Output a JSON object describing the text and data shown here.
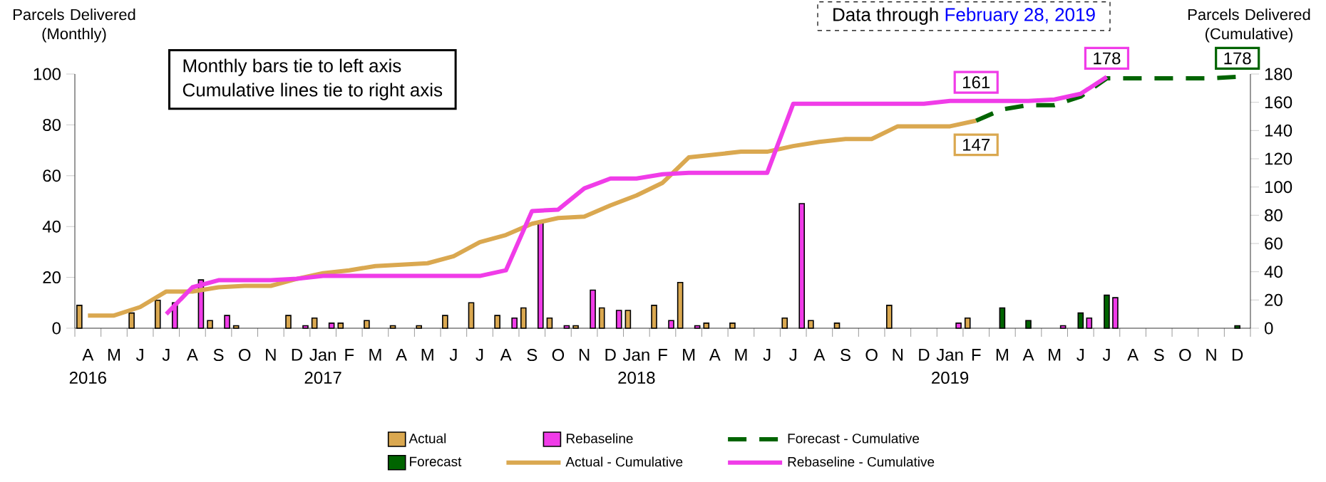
{
  "chart_data": {
    "type": "bar",
    "ylabel": "Parcels Delivered (Monthly)",
    "y2label": "Parcels Delivered (Cumulative)",
    "categories": [
      "A",
      "M",
      "J",
      "J",
      "A",
      "S",
      "O",
      "N",
      "D",
      "Jan",
      "F",
      "M",
      "A",
      "M",
      "J",
      "J",
      "A",
      "S",
      "O",
      "N",
      "D",
      "Jan",
      "F",
      "M",
      "A",
      "M",
      "J",
      "J",
      "A",
      "S",
      "O",
      "N",
      "D",
      "Jan",
      "F",
      "M",
      "A",
      "M",
      "J",
      "J",
      "A",
      "S",
      "O",
      "N",
      "D"
    ],
    "ylim": [
      0,
      100
    ],
    "yticks": [
      0,
      20,
      40,
      60,
      80,
      100
    ],
    "y2lim": [
      0,
      180
    ],
    "y2ticks": [
      0,
      20,
      40,
      60,
      80,
      100,
      120,
      140,
      160,
      180
    ],
    "legend": "bottom",
    "annotations": [
      "Monthly bars tie to left axis",
      "Cumulative lines tie to right axis",
      "Data through",
      "February 28, 2019",
      "2016",
      "2017",
      "2018",
      "2019"
    ],
    "series": [
      {
        "name": "Actual",
        "type": "bar",
        "color": "#daa850",
        "values": [
          9,
          null,
          6,
          11,
          null,
          3,
          1,
          null,
          5,
          4,
          2,
          3,
          1,
          1,
          5,
          10,
          5,
          8,
          4,
          1,
          8,
          7,
          9,
          18,
          2,
          2,
          null,
          4,
          3,
          2,
          null,
          9,
          null,
          null,
          4,
          null,
          null,
          null,
          null,
          null,
          null,
          null,
          null,
          null,
          null
        ]
      },
      {
        "name": "Forecast",
        "type": "bar",
        "color": "#006400",
        "values": [
          null,
          null,
          null,
          null,
          null,
          null,
          null,
          null,
          null,
          null,
          null,
          null,
          null,
          null,
          null,
          null,
          null,
          null,
          null,
          null,
          null,
          null,
          null,
          null,
          null,
          null,
          null,
          null,
          null,
          null,
          null,
          null,
          null,
          null,
          null,
          8,
          3,
          null,
          6,
          13,
          null,
          null,
          null,
          null,
          1
        ]
      },
      {
        "name": "Rebaseline",
        "type": "bar",
        "color": "#f03ce8",
        "values": [
          null,
          null,
          null,
          10,
          19,
          5,
          null,
          null,
          1,
          2,
          null,
          null,
          null,
          null,
          null,
          null,
          4,
          42,
          1,
          15,
          7,
          null,
          3,
          1,
          null,
          null,
          null,
          49,
          null,
          null,
          null,
          null,
          null,
          2,
          null,
          null,
          null,
          1,
          4,
          12,
          null,
          null,
          null,
          null,
          null
        ]
      },
      {
        "name": "Actual - Cumulative",
        "type": "line",
        "axis": "y2",
        "line_style": "solid",
        "color": "#daa850",
        "values": [
          9,
          9,
          15,
          26,
          26,
          29,
          30,
          30,
          35,
          39,
          41,
          44,
          45,
          46,
          51,
          61,
          66,
          74,
          78,
          79,
          87,
          94,
          103,
          121,
          123,
          125,
          125,
          129,
          132,
          134,
          134,
          143,
          143,
          143,
          147,
          null,
          null,
          null,
          null,
          null,
          null,
          null,
          null,
          null,
          null
        ],
        "value_labels": [
          null,
          null,
          null,
          null,
          null,
          null,
          null,
          null,
          null,
          null,
          null,
          null,
          null,
          null,
          null,
          null,
          null,
          null,
          null,
          null,
          null,
          null,
          null,
          null,
          null,
          null,
          null,
          null,
          null,
          null,
          null,
          null,
          null,
          null,
          "147",
          null,
          null,
          null,
          null,
          null,
          null,
          null,
          null,
          null,
          null
        ]
      },
      {
        "name": "Forecast - Cumulative",
        "type": "line",
        "axis": "y2",
        "line_style": "dashed",
        "color": "#006400",
        "values": [
          null,
          null,
          null,
          null,
          null,
          null,
          null,
          null,
          null,
          null,
          null,
          null,
          null,
          null,
          null,
          null,
          null,
          null,
          null,
          null,
          null,
          null,
          null,
          null,
          null,
          null,
          null,
          null,
          null,
          null,
          null,
          null,
          null,
          null,
          147,
          155,
          158,
          158,
          164,
          177,
          177,
          177,
          177,
          177,
          178
        ],
        "value_labels": [
          null,
          null,
          null,
          null,
          null,
          null,
          null,
          null,
          null,
          null,
          null,
          null,
          null,
          null,
          null,
          null,
          null,
          null,
          null,
          null,
          null,
          null,
          null,
          null,
          null,
          null,
          null,
          null,
          null,
          null,
          null,
          null,
          null,
          null,
          null,
          null,
          null,
          null,
          null,
          null,
          null,
          null,
          null,
          null,
          "178"
        ]
      },
      {
        "name": "Rebaseline - Cumulative",
        "type": "line",
        "axis": "y2",
        "line_style": "solid",
        "color": "#f03ce8",
        "values": [
          null,
          null,
          null,
          10,
          29,
          34,
          34,
          34,
          35,
          37,
          37,
          37,
          37,
          37,
          37,
          37,
          41,
          83,
          84,
          99,
          106,
          106,
          109,
          110,
          110,
          110,
          110,
          159,
          159,
          159,
          159,
          159,
          159,
          161,
          161,
          161,
          161,
          162,
          166,
          178,
          null,
          null,
          null,
          null,
          null
        ],
        "value_labels": [
          null,
          null,
          null,
          null,
          null,
          null,
          null,
          null,
          null,
          null,
          null,
          null,
          null,
          null,
          null,
          null,
          null,
          null,
          null,
          null,
          null,
          null,
          null,
          null,
          null,
          null,
          null,
          null,
          null,
          null,
          null,
          null,
          null,
          null,
          "161",
          null,
          null,
          null,
          null,
          "178",
          null,
          null,
          null,
          null,
          null
        ]
      }
    ]
  }
}
